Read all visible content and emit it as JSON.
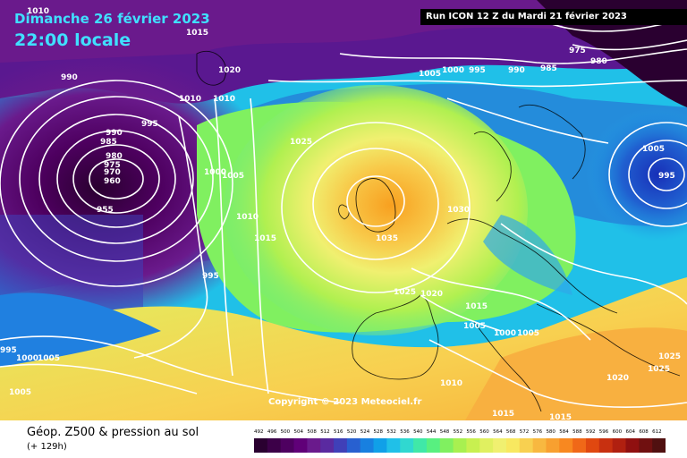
{
  "header": {
    "date": "Dimanche 26 février 2023",
    "local_time": "22:00 locale",
    "run_info": "Run ICON 12 Z du Mardi 21 février 2023"
  },
  "copyright": "Copyright © 2023 Meteociel.fr",
  "footer": {
    "title": "Géop. Z500 & pression au sol",
    "subtitle": "(+ 129h)"
  },
  "legend": {
    "values": [
      "492",
      "496",
      "500",
      "504",
      "508",
      "512",
      "516",
      "520",
      "524",
      "528",
      "532",
      "536",
      "540",
      "544",
      "548",
      "552",
      "556",
      "560",
      "564",
      "568",
      "572",
      "576",
      "580",
      "584",
      "588",
      "592",
      "596",
      "600",
      "604",
      "608",
      "612"
    ],
    "colors": [
      "#2a0030",
      "#3c0048",
      "#4e0060",
      "#600078",
      "#6a1a8c",
      "#5a2aa0",
      "#4040b8",
      "#2860d0",
      "#1880e0",
      "#10a0e8",
      "#20c0e8",
      "#30d8d0",
      "#40e8a8",
      "#58f080",
      "#80f060",
      "#a8f050",
      "#c8f050",
      "#e0f060",
      "#f0f070",
      "#f8e860",
      "#f8d050",
      "#f8b840",
      "#f8a030",
      "#f88820",
      "#f06818",
      "#e04810",
      "#c83010",
      "#b02010",
      "#901010",
      "#701010",
      "#501010"
    ]
  },
  "pressure_labels": [
    {
      "text": "1010"
    },
    {
      "text": "1015"
    },
    {
      "text": "975"
    },
    {
      "text": "980"
    },
    {
      "text": "1005"
    },
    {
      "text": "1000"
    },
    {
      "text": "995"
    },
    {
      "text": "990"
    },
    {
      "text": "985"
    },
    {
      "text": "990"
    },
    {
      "text": "1020"
    },
    {
      "text": "1010"
    },
    {
      "text": "1010"
    },
    {
      "text": "995"
    },
    {
      "text": "990"
    },
    {
      "text": "985"
    },
    {
      "text": "980"
    },
    {
      "text": "975"
    },
    {
      "text": "970"
    },
    {
      "text": "960"
    },
    {
      "text": "955"
    },
    {
      "text": "1025"
    },
    {
      "text": "1000"
    },
    {
      "text": "1005"
    },
    {
      "text": "1010"
    },
    {
      "text": "1015"
    },
    {
      "text": "995"
    },
    {
      "text": "1030"
    },
    {
      "text": "1035"
    },
    {
      "text": "1025"
    },
    {
      "text": "1020"
    },
    {
      "text": "1015"
    },
    {
      "text": "1005"
    },
    {
      "text": "1000"
    },
    {
      "text": "1005"
    },
    {
      "text": "1005"
    },
    {
      "text": "995"
    },
    {
      "text": "995"
    },
    {
      "text": "1000"
    },
    {
      "text": "1005"
    },
    {
      "text": "1005"
    },
    {
      "text": "1010"
    },
    {
      "text": "1015"
    },
    {
      "text": "1015"
    },
    {
      "text": "1025"
    },
    {
      "text": "1025"
    },
    {
      "text": "1020"
    }
  ]
}
